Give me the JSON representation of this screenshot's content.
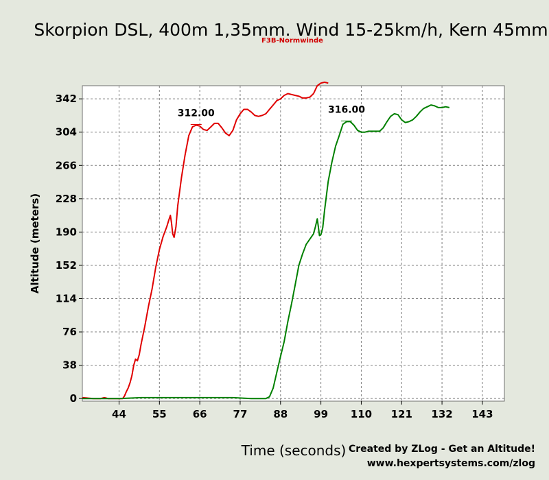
{
  "chart_data": {
    "type": "line",
    "title": "Skorpion DSL, 400m 1,35mm. Wind 15-25km/h, Kern 45mm",
    "subtitle": "F3B-Normwinde",
    "xlabel": "Time (seconds)",
    "ylabel": "Altitude (meters)",
    "xlim": [
      34,
      149
    ],
    "ylim": [
      -3,
      357
    ],
    "x_ticks": [
      44,
      55,
      66,
      77,
      88,
      99,
      110,
      121,
      132,
      143
    ],
    "y_ticks": [
      0,
      38,
      76,
      114,
      152,
      190,
      228,
      266,
      304,
      342
    ],
    "grid": true,
    "legend": "none",
    "series": [
      {
        "color": "#e00000",
        "points": [
          [
            34,
            1
          ],
          [
            37,
            0
          ],
          [
            39,
            0
          ],
          [
            40,
            1
          ],
          [
            41,
            0
          ],
          [
            43,
            0
          ],
          [
            44,
            0
          ],
          [
            45,
            0
          ],
          [
            45.5,
            3
          ],
          [
            46,
            8
          ],
          [
            46.5,
            12
          ],
          [
            47,
            18
          ],
          [
            47.5,
            26
          ],
          [
            48,
            38
          ],
          [
            48.5,
            45
          ],
          [
            49,
            43
          ],
          [
            49.5,
            50
          ],
          [
            50,
            62
          ],
          [
            51,
            82
          ],
          [
            52,
            105
          ],
          [
            53,
            125
          ],
          [
            54,
            150
          ],
          [
            55,
            170
          ],
          [
            56,
            185
          ],
          [
            57,
            196
          ],
          [
            57.5,
            203
          ],
          [
            58,
            209
          ],
          [
            58.3,
            200
          ],
          [
            58.6,
            188
          ],
          [
            59,
            184
          ],
          [
            59.5,
            196
          ],
          [
            60,
            220
          ],
          [
            61,
            252
          ],
          [
            62,
            278
          ],
          [
            63,
            300
          ],
          [
            64,
            310
          ],
          [
            65,
            312
          ],
          [
            66,
            311
          ],
          [
            67,
            307
          ],
          [
            68,
            306
          ],
          [
            69,
            310
          ],
          [
            70,
            314
          ],
          [
            71,
            314
          ],
          [
            72,
            309
          ],
          [
            73,
            303
          ],
          [
            74,
            300
          ],
          [
            75,
            306
          ],
          [
            76,
            318
          ],
          [
            77,
            325
          ],
          [
            78,
            330
          ],
          [
            79,
            330
          ],
          [
            80,
            327
          ],
          [
            81,
            323
          ],
          [
            82,
            322
          ],
          [
            83,
            323
          ],
          [
            84,
            325
          ],
          [
            85,
            330
          ],
          [
            86,
            335
          ],
          [
            87,
            340
          ],
          [
            88,
            342
          ],
          [
            89,
            346
          ],
          [
            90,
            348
          ],
          [
            91,
            347
          ],
          [
            92,
            346
          ],
          [
            93,
            345
          ],
          [
            94,
            343
          ],
          [
            95,
            343
          ],
          [
            96,
            344
          ],
          [
            97,
            348
          ],
          [
            98,
            357
          ],
          [
            99,
            360
          ],
          [
            100,
            361
          ],
          [
            101,
            360
          ]
        ]
      },
      {
        "color": "#008000",
        "points": [
          [
            34,
            0
          ],
          [
            40,
            0
          ],
          [
            44,
            0
          ],
          [
            50,
            1
          ],
          [
            55,
            1
          ],
          [
            60,
            1
          ],
          [
            65,
            1
          ],
          [
            70,
            1
          ],
          [
            75,
            1
          ],
          [
            80,
            0
          ],
          [
            84,
            0
          ],
          [
            85,
            2
          ],
          [
            86,
            12
          ],
          [
            87,
            30
          ],
          [
            88,
            48
          ],
          [
            89,
            65
          ],
          [
            90,
            88
          ],
          [
            91,
            108
          ],
          [
            92,
            130
          ],
          [
            93,
            152
          ],
          [
            94,
            165
          ],
          [
            95,
            176
          ],
          [
            96,
            182
          ],
          [
            97,
            188
          ],
          [
            97.5,
            196
          ],
          [
            98,
            205
          ],
          [
            98.3,
            196
          ],
          [
            98.6,
            186
          ],
          [
            99,
            187
          ],
          [
            99.5,
            195
          ],
          [
            100,
            215
          ],
          [
            101,
            248
          ],
          [
            102,
            270
          ],
          [
            103,
            288
          ],
          [
            104,
            300
          ],
          [
            105,
            313
          ],
          [
            106,
            316
          ],
          [
            107,
            316
          ],
          [
            108,
            312
          ],
          [
            109,
            306
          ],
          [
            110,
            304
          ],
          [
            111,
            304
          ],
          [
            112,
            305
          ],
          [
            113,
            305
          ],
          [
            114,
            305
          ],
          [
            115,
            305
          ],
          [
            116,
            309
          ],
          [
            117,
            316
          ],
          [
            118,
            322
          ],
          [
            119,
            325
          ],
          [
            120,
            324
          ],
          [
            121,
            318
          ],
          [
            122,
            315
          ],
          [
            123,
            316
          ],
          [
            124,
            318
          ],
          [
            125,
            322
          ],
          [
            126,
            327
          ],
          [
            127,
            331
          ],
          [
            128,
            333
          ],
          [
            129,
            335
          ],
          [
            130,
            334
          ],
          [
            131,
            332
          ],
          [
            132,
            332
          ],
          [
            133,
            333
          ],
          [
            134,
            332
          ]
        ]
      }
    ],
    "annotations": [
      {
        "text": "312.00",
        "x": 65,
        "y": 312,
        "color": "#e00000"
      },
      {
        "text": "316.00",
        "x": 106,
        "y": 316,
        "color": "#008000"
      }
    ]
  },
  "credits": {
    "line1": "Created by ZLog - Get an Altitude!",
    "line2": "www.hexpertsystems.com/zlog"
  },
  "colors": {
    "background": "#e4e8de",
    "plot_area": "#ffffff",
    "grid": "#808080"
  }
}
